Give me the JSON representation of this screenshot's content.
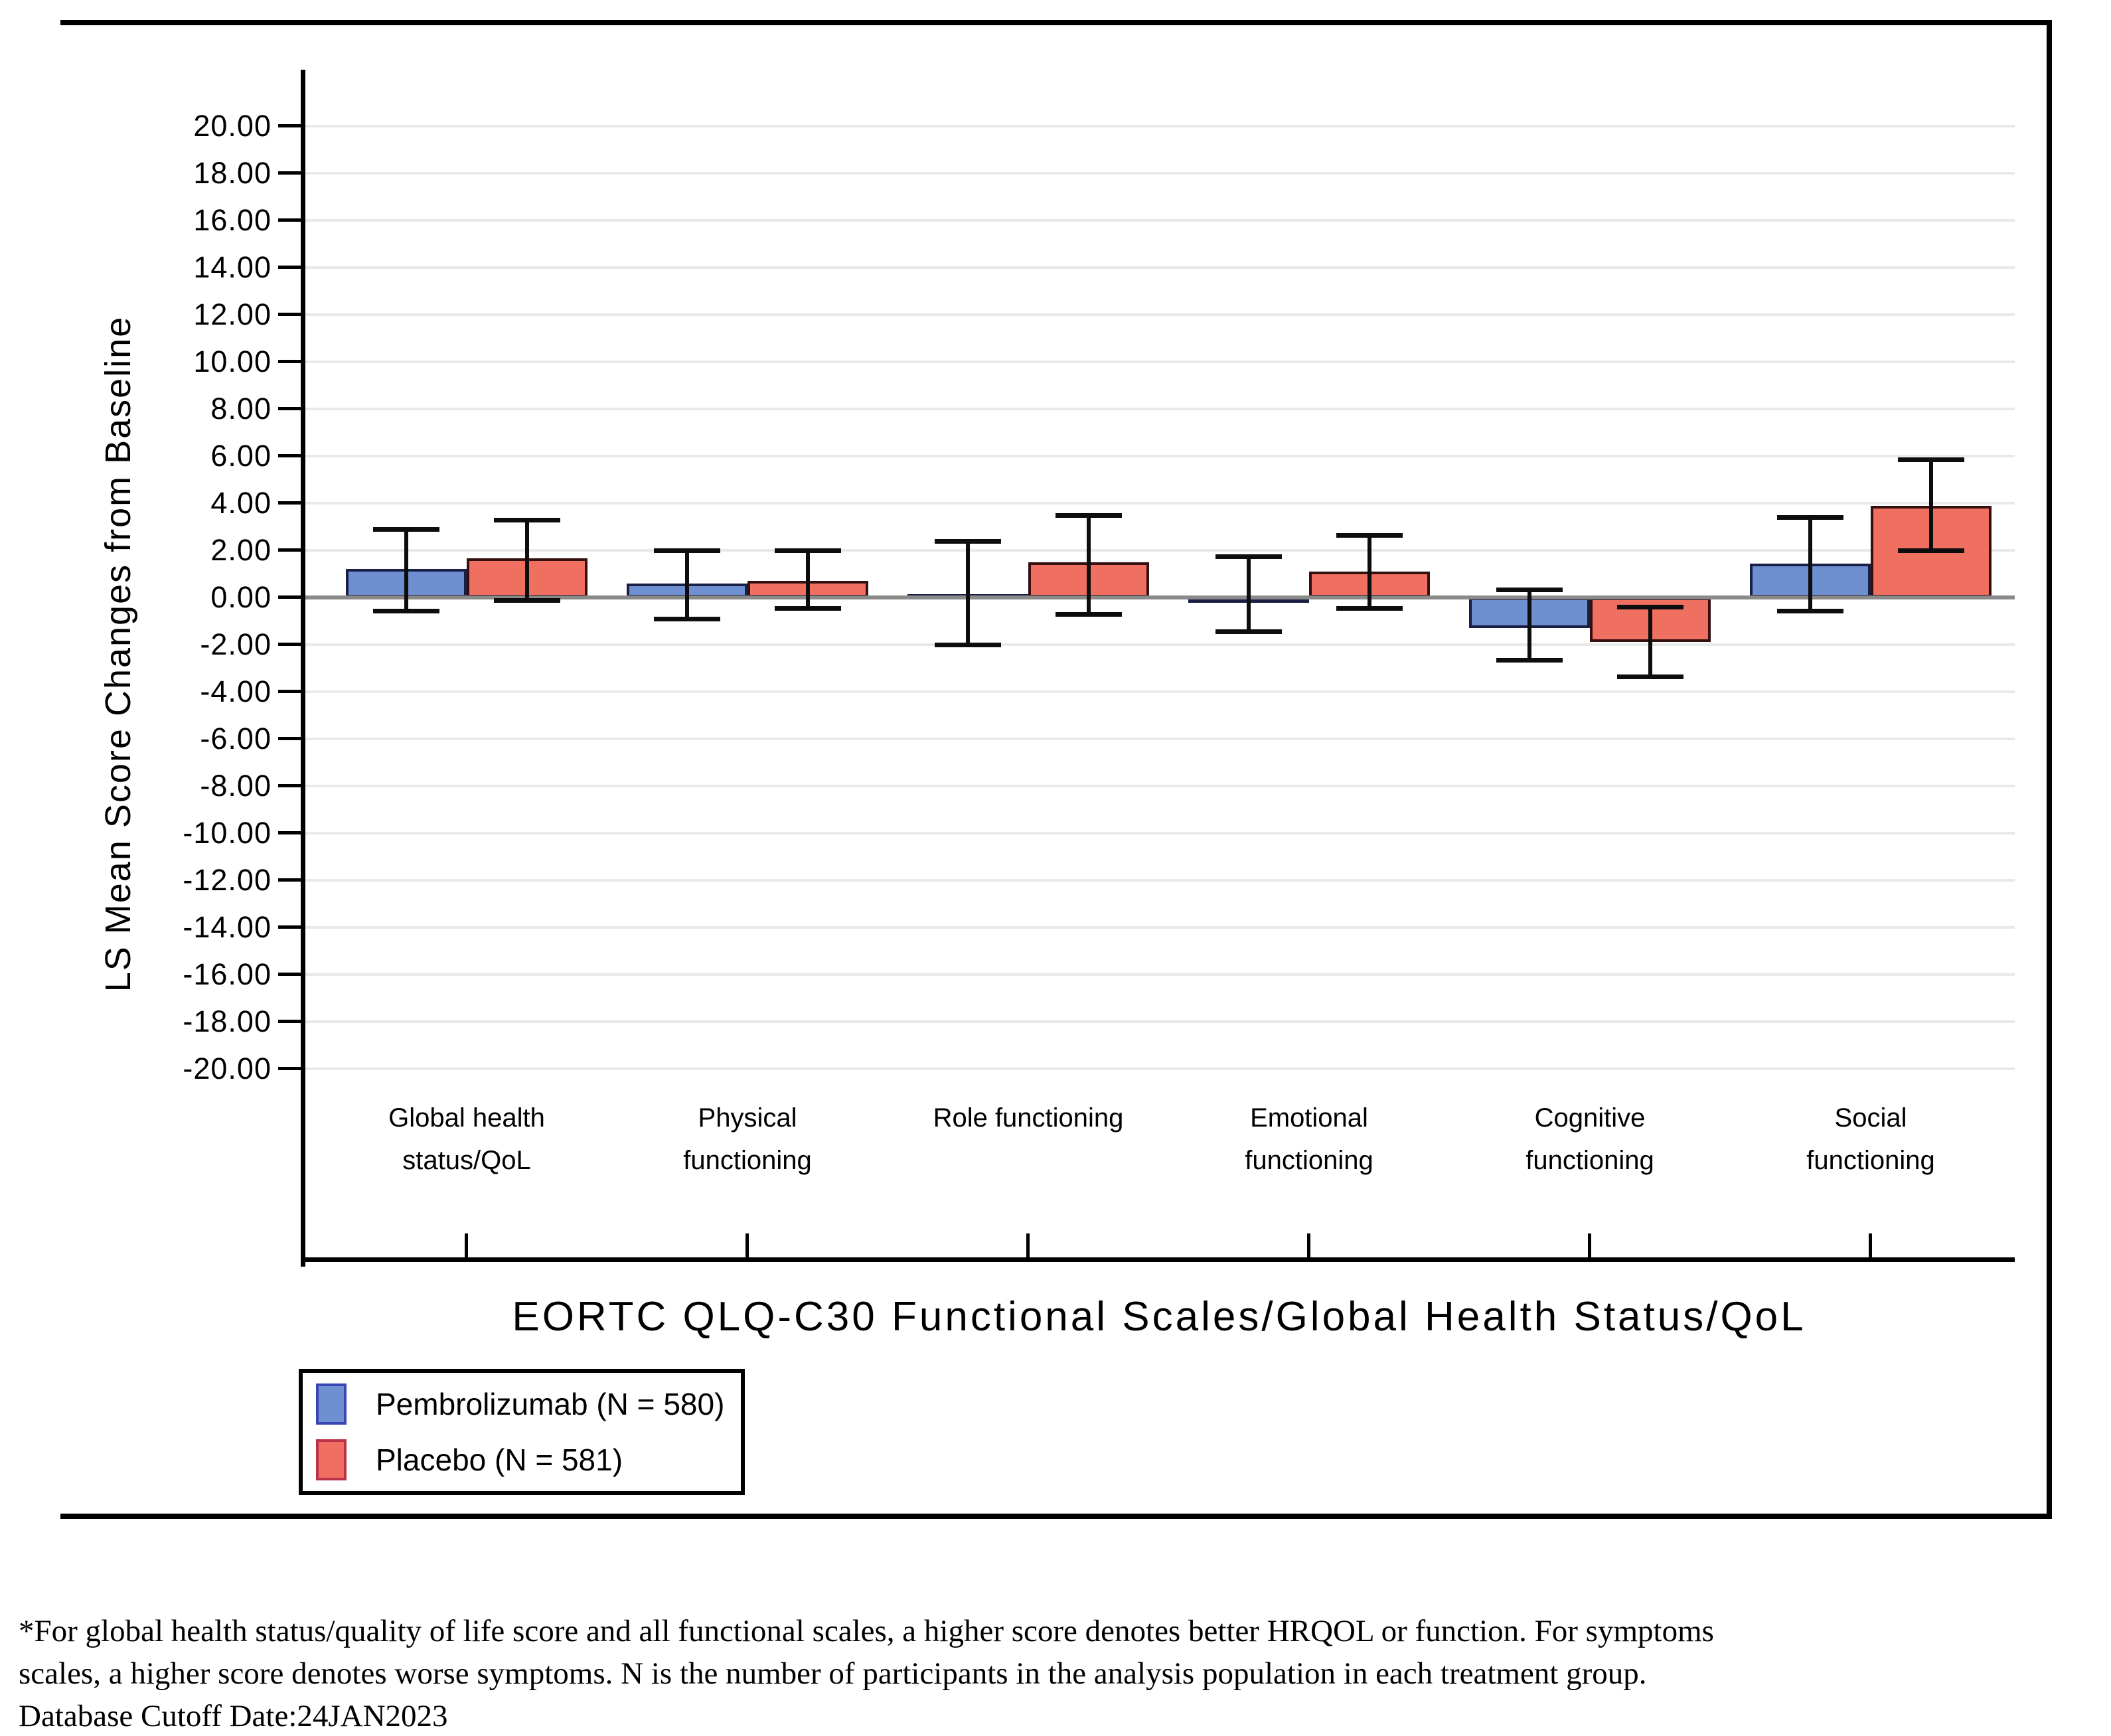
{
  "figure": {
    "y_axis_title": "LS Mean Score Changes from Baseline",
    "x_axis_title": "EORTC QLQ-C30 Functional Scales/Global Health Status/QoL",
    "footnote": {
      "line1": "*For global health status/quality of life score and all functional scales, a higher score denotes better HRQOL or function. For symptoms",
      "line2": "scales, a higher score denotes worse symptoms. N is the number of participants in the analysis population in each treatment group.",
      "line3": "Database Cutoff Date:24JAN2023"
    }
  },
  "legend": {
    "items": [
      {
        "label": "Pembrolizumab (N = 580)",
        "fill": "#6e8fd0",
        "border": "#3a46b5"
      },
      {
        "label": "Placebo (N = 581)",
        "fill": "#ef6f60",
        "border": "#bb3348"
      }
    ]
  },
  "colors": {
    "pembrolizumab_fill": "#6e8fd0",
    "pembrolizumab_border": "#1a1f45",
    "placebo_fill": "#ef6f60",
    "placebo_border": "#351010",
    "zero_line": "#8a8a8a",
    "gridline": "#e9e9e9",
    "error_bar": "#0d0d0d"
  },
  "chart_data": {
    "type": "bar",
    "title": "",
    "xlabel": "EORTC QLQ-C30 Functional Scales/Global Health Status/QoL",
    "ylabel": "LS Mean Score Changes from Baseline",
    "ylim": [
      -20,
      20
    ],
    "ytick_step": 2,
    "ytick_labels": [
      "20.00",
      "18.00",
      "16.00",
      "14.00",
      "12.00",
      "10.00",
      "8.00",
      "6.00",
      "4.00",
      "2.00",
      "0.00",
      "-2.00",
      "-4.00",
      "-6.00",
      "-8.00",
      "-10.00",
      "-12.00",
      "-14.00",
      "-16.00",
      "-18.00",
      "-20.00"
    ],
    "grid": true,
    "legend_position": "bottom-left",
    "error_bars": true,
    "categories": [
      "Global health status/QoL",
      "Physical functioning",
      "Role functioning",
      "Emotional functioning",
      "Cognitive functioning",
      "Social functioning"
    ],
    "category_label_lines": [
      [
        "Global health",
        "status/QoL"
      ],
      [
        "Physical",
        "functioning"
      ],
      [
        "Role functioning"
      ],
      [
        "Emotional",
        "functioning"
      ],
      [
        "Cognitive",
        "functioning"
      ],
      [
        "Social",
        "functioning"
      ]
    ],
    "series": [
      {
        "name": "Pembrolizumab (N = 580)",
        "values": [
          1.2,
          0.6,
          0.15,
          -0.15,
          -1.3,
          1.45
        ],
        "ci_low": [
          -0.55,
          -0.9,
          -2.0,
          -1.45,
          -2.65,
          -0.55
        ],
        "ci_high": [
          2.9,
          2.0,
          2.4,
          1.75,
          0.35,
          3.4
        ]
      },
      {
        "name": "Placebo (N = 581)",
        "values": [
          1.65,
          0.7,
          1.5,
          1.1,
          -1.9,
          3.9
        ],
        "ci_low": [
          -0.1,
          -0.45,
          -0.7,
          -0.45,
          -3.35,
          2.0
        ],
        "ci_high": [
          3.3,
          2.0,
          3.5,
          2.65,
          -0.4,
          5.85
        ]
      }
    ]
  }
}
